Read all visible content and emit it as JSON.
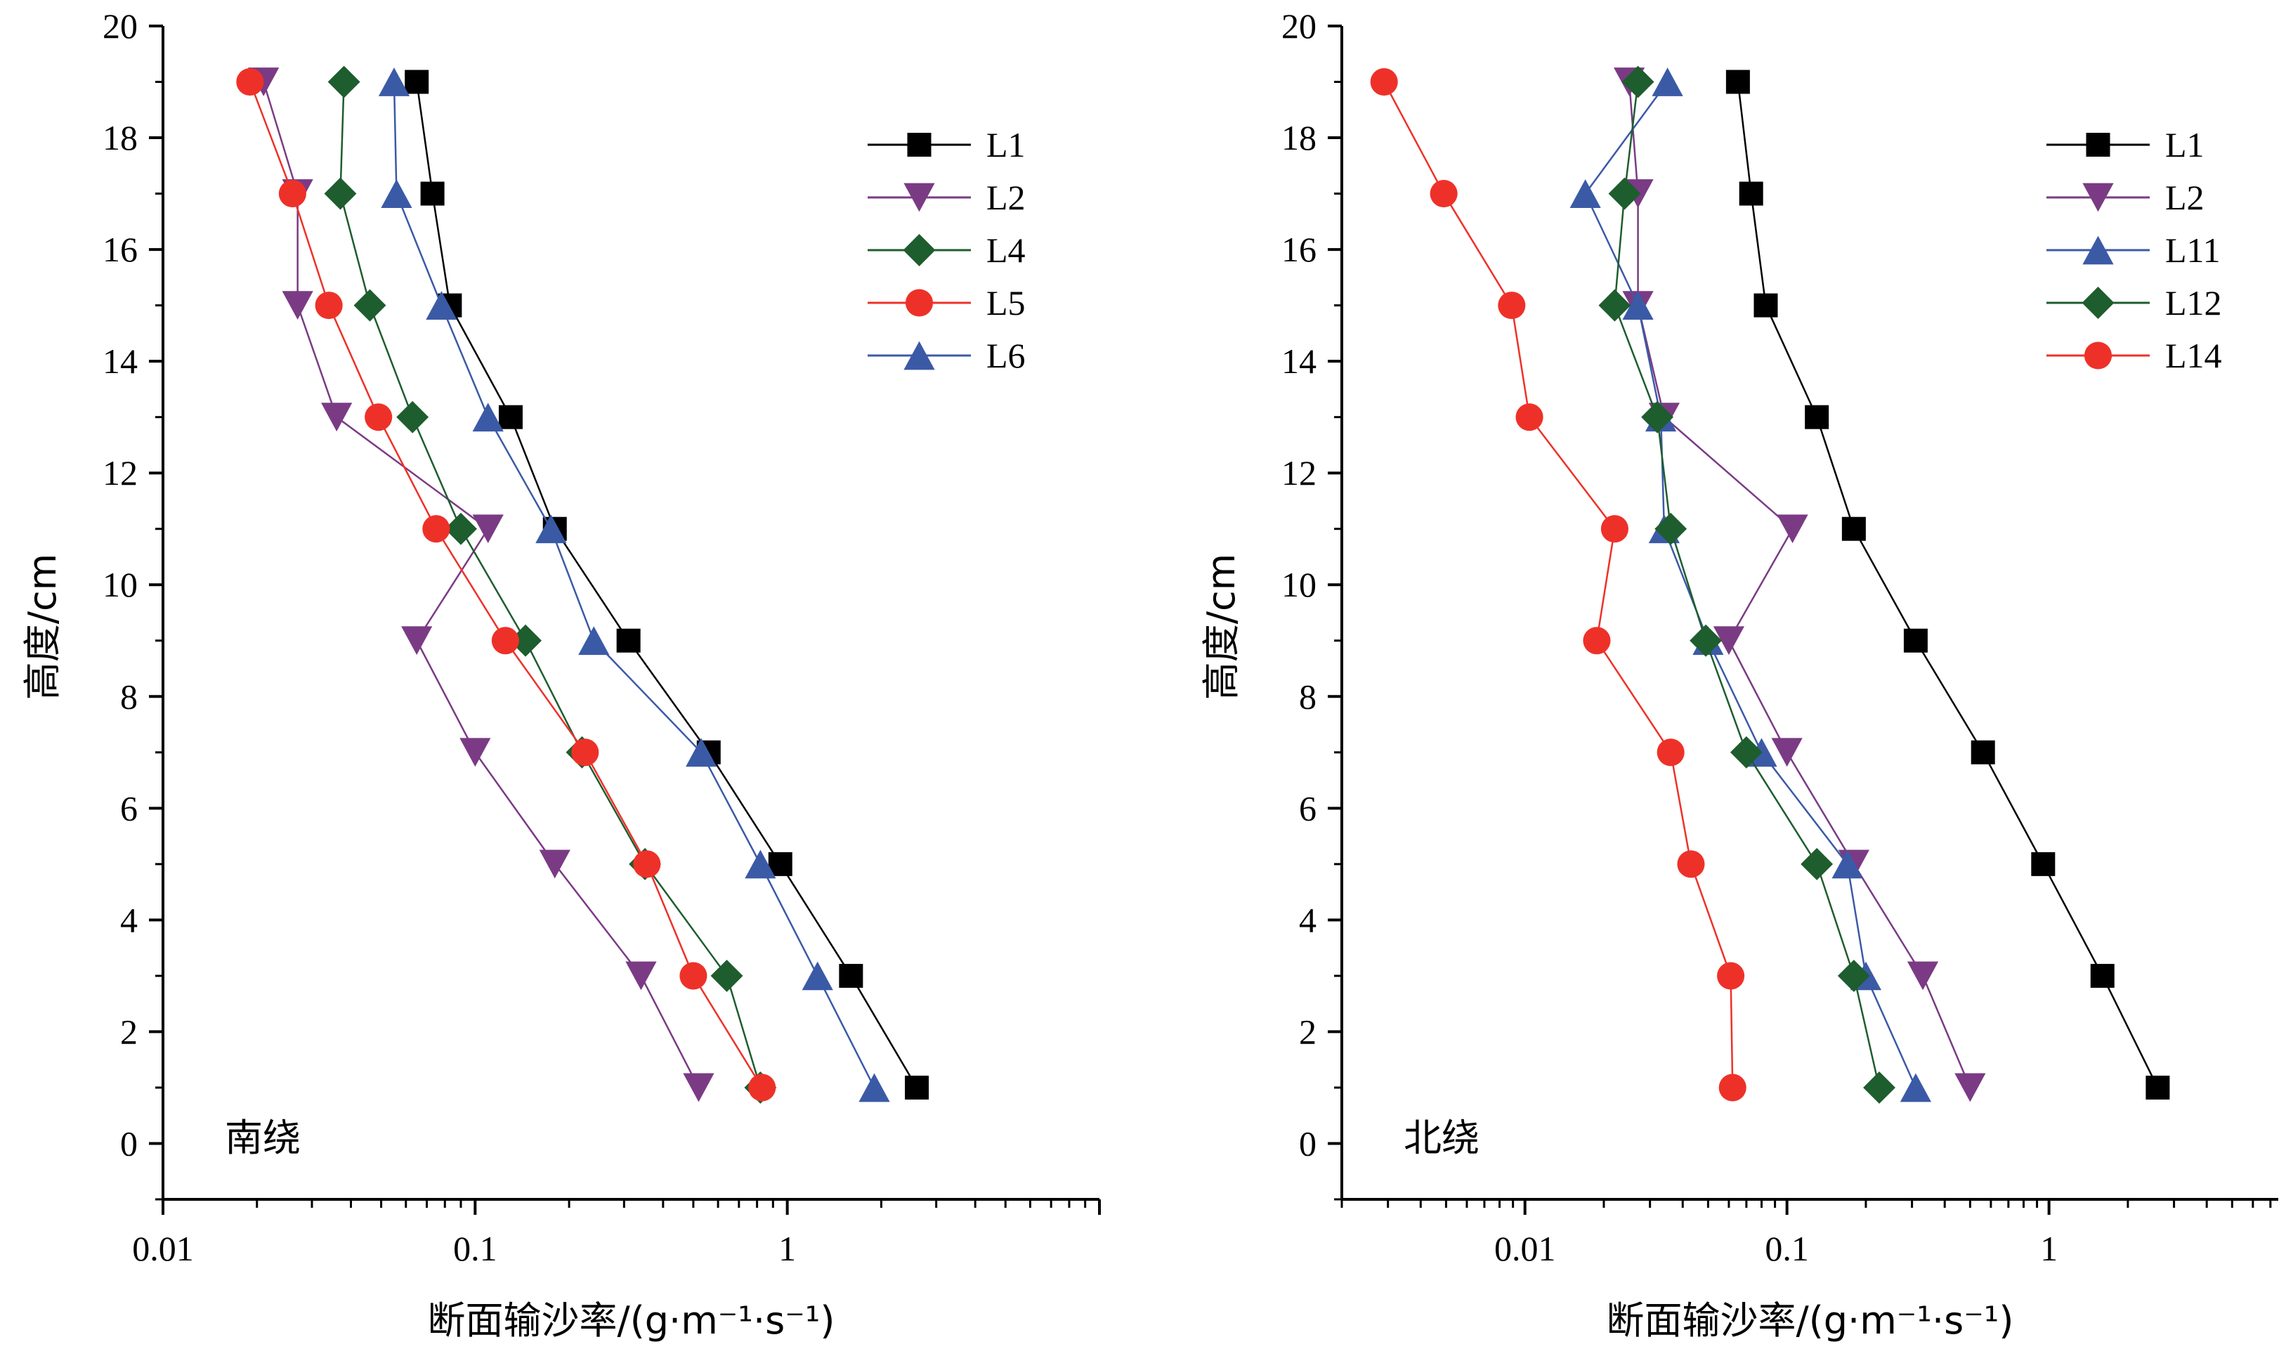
{
  "chart_data": [
    {
      "type": "line",
      "panel_label": "南绕",
      "xlabel": "断面输沙率/(g·m⁻¹·s⁻¹)",
      "ylabel": "高度/cm",
      "x_scale": "log",
      "xlim": [
        0.01,
        10
      ],
      "ylim": [
        -1,
        20
      ],
      "x_tick_values": [
        0.01,
        0.1,
        1
      ],
      "x_tick_labels": [
        "0.01",
        "0.1",
        "1"
      ],
      "y_ticks": [
        0,
        2,
        4,
        6,
        8,
        10,
        12,
        14,
        16,
        18,
        20
      ],
      "legend_position": "top-right",
      "series": [
        {
          "name": "L1",
          "color": "#000000",
          "marker": "square",
          "points": [
            [
              0.065,
              19
            ],
            [
              0.073,
              17
            ],
            [
              0.083,
              15
            ],
            [
              0.13,
              13
            ],
            [
              0.18,
              11
            ],
            [
              0.31,
              9
            ],
            [
              0.56,
              7
            ],
            [
              0.95,
              5
            ],
            [
              1.6,
              3
            ],
            [
              2.6,
              1
            ]
          ]
        },
        {
          "name": "L2",
          "color": "#7a3b84",
          "marker": "triangle-down",
          "points": [
            [
              0.021,
              19
            ],
            [
              0.027,
              17
            ],
            [
              0.027,
              15
            ],
            [
              0.036,
              13
            ],
            [
              0.11,
              11
            ],
            [
              0.065,
              9
            ],
            [
              0.1,
              7
            ],
            [
              0.18,
              5
            ],
            [
              0.34,
              3
            ],
            [
              0.52,
              1
            ]
          ]
        },
        {
          "name": "L4",
          "color": "#1e5d2e",
          "marker": "diamond",
          "points": [
            [
              0.038,
              19
            ],
            [
              0.037,
              17
            ],
            [
              0.046,
              15
            ],
            [
              0.063,
              13
            ],
            [
              0.09,
              11
            ],
            [
              0.145,
              9
            ],
            [
              0.22,
              7
            ],
            [
              0.35,
              5
            ],
            [
              0.64,
              3
            ],
            [
              0.82,
              1
            ]
          ]
        },
        {
          "name": "L5",
          "color": "#ee3128",
          "marker": "circle",
          "points": [
            [
              0.019,
              19
            ],
            [
              0.026,
              17
            ],
            [
              0.034,
              15
            ],
            [
              0.049,
              13
            ],
            [
              0.075,
              11
            ],
            [
              0.125,
              9
            ],
            [
              0.225,
              7
            ],
            [
              0.355,
              5
            ],
            [
              0.5,
              3
            ],
            [
              0.83,
              1
            ]
          ]
        },
        {
          "name": "L6",
          "color": "#3b5aa6",
          "marker": "triangle-up",
          "points": [
            [
              0.055,
              19
            ],
            [
              0.056,
              17
            ],
            [
              0.078,
              15
            ],
            [
              0.11,
              13
            ],
            [
              0.175,
              11
            ],
            [
              0.24,
              9
            ],
            [
              0.53,
              7
            ],
            [
              0.82,
              5
            ],
            [
              1.25,
              3
            ],
            [
              1.9,
              1
            ]
          ]
        }
      ]
    },
    {
      "type": "line",
      "panel_label": "北绕",
      "xlabel": "断面输沙率/(g·m⁻¹·s⁻¹)",
      "ylabel": "高度/cm",
      "x_scale": "log",
      "xlim": [
        0.002,
        7.5
      ],
      "ylim": [
        -1,
        20
      ],
      "x_tick_values": [
        0.01,
        0.1,
        1
      ],
      "x_tick_labels": [
        "0.01",
        "0.1",
        "1"
      ],
      "y_ticks": [
        0,
        2,
        4,
        6,
        8,
        10,
        12,
        14,
        16,
        18,
        20
      ],
      "legend_position": "top-right",
      "series": [
        {
          "name": "L1",
          "color": "#000000",
          "marker": "square",
          "points": [
            [
              0.065,
              19
            ],
            [
              0.073,
              17
            ],
            [
              0.083,
              15
            ],
            [
              0.13,
              13
            ],
            [
              0.18,
              11
            ],
            [
              0.31,
              9
            ],
            [
              0.56,
              7
            ],
            [
              0.95,
              5
            ],
            [
              1.6,
              3
            ],
            [
              2.6,
              1
            ]
          ]
        },
        {
          "name": "L2",
          "color": "#7a3b84",
          "marker": "triangle-down",
          "points": [
            [
              0.025,
              19
            ],
            [
              0.027,
              17
            ],
            [
              0.027,
              15
            ],
            [
              0.034,
              13
            ],
            [
              0.105,
              11
            ],
            [
              0.06,
              9
            ],
            [
              0.1,
              7
            ],
            [
              0.18,
              5
            ],
            [
              0.33,
              3
            ],
            [
              0.5,
              1
            ]
          ]
        },
        {
          "name": "L11",
          "color": "#3b5aa6",
          "marker": "triangle-up",
          "points": [
            [
              0.035,
              19
            ],
            [
              0.017,
              17
            ],
            [
              0.027,
              15
            ],
            [
              0.033,
              13
            ],
            [
              0.034,
              11
            ],
            [
              0.05,
              9
            ],
            [
              0.08,
              7
            ],
            [
              0.17,
              5
            ],
            [
              0.2,
              3
            ],
            [
              0.31,
              1
            ]
          ]
        },
        {
          "name": "L12",
          "color": "#1e5d2e",
          "marker": "diamond",
          "points": [
            [
              0.027,
              19
            ],
            [
              0.024,
              17
            ],
            [
              0.022,
              15
            ],
            [
              0.032,
              13
            ],
            [
              0.036,
              11
            ],
            [
              0.049,
              9
            ],
            [
              0.07,
              7
            ],
            [
              0.13,
              5
            ],
            [
              0.18,
              3
            ],
            [
              0.225,
              1
            ]
          ]
        },
        {
          "name": "L14",
          "color": "#ee3128",
          "marker": "circle",
          "points": [
            [
              0.0029,
              19
            ],
            [
              0.0049,
              17
            ],
            [
              0.0089,
              15
            ],
            [
              0.0104,
              13
            ],
            [
              0.022,
              11
            ],
            [
              0.0188,
              9
            ],
            [
              0.036,
              7
            ],
            [
              0.043,
              5
            ],
            [
              0.061,
              3
            ],
            [
              0.062,
              1
            ]
          ]
        }
      ]
    }
  ]
}
